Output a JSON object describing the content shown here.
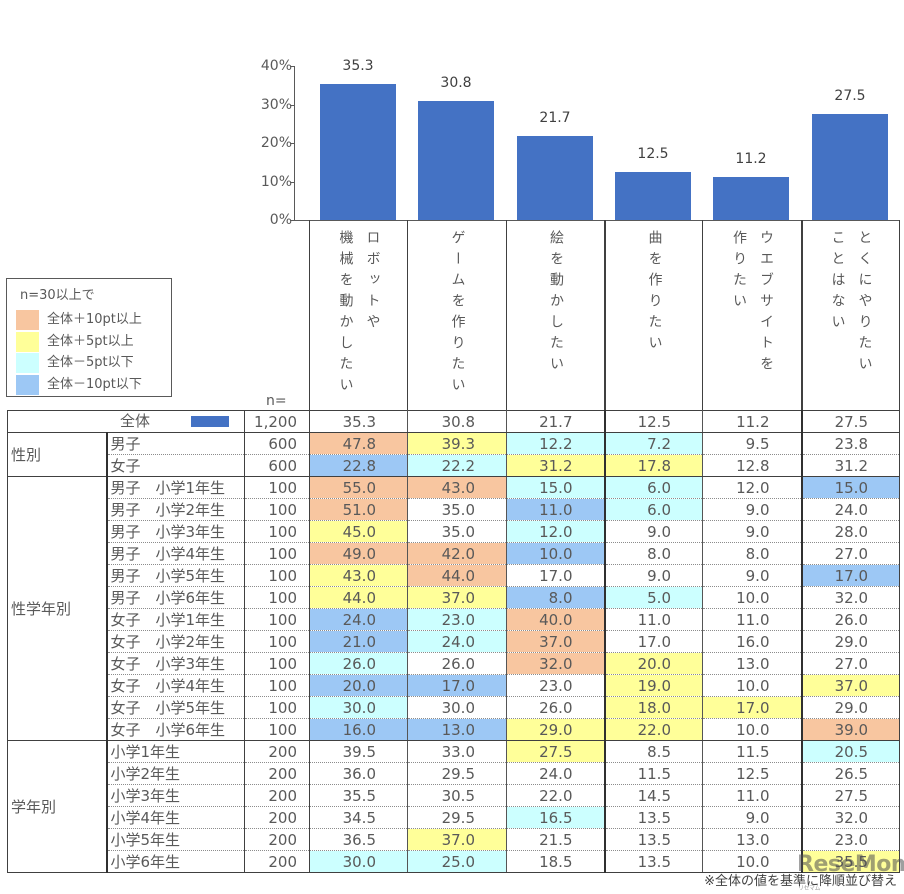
{
  "chart_data": [
    {
      "type": "bar",
      "title": "",
      "xlabel": "",
      "ylabel": "",
      "categories": [
        "ロボットや機械を動かしたい",
        "ゲームを作りたい",
        "絵を動かしたい",
        "曲を作りたい",
        "ウエブサイトを作りたい",
        "とくにやりたいことはない"
      ],
      "values": [
        35.3,
        30.8,
        21.7,
        12.5,
        11.2,
        27.5
      ],
      "value_labels": [
        "35.3",
        "30.8",
        "21.7",
        "12.5",
        "11.2",
        "27.5"
      ],
      "yticks": [
        "0%",
        "10%",
        "20%",
        "30%",
        "40%"
      ],
      "ylim": [
        0,
        40
      ],
      "grid": false,
      "legend": "none",
      "color": "#4472C4"
    },
    {
      "type": "table",
      "columns": [
        "ロボットや機械を動かしたい",
        "ゲームを作りたい",
        "絵を動かしたい",
        "曲を作りたい",
        "ウエブサイトを作りたい",
        "とくにやりたいことはない"
      ],
      "n_label": "n=",
      "total": {
        "label": "全体",
        "n": "1,200",
        "values": [
          "35.3",
          "30.8",
          "21.7",
          "12.5",
          "11.2",
          "27.5"
        ],
        "highlights": [
          "",
          "",
          "",
          "",
          "",
          ""
        ]
      },
      "groups": [
        {
          "label": "性別",
          "rows": [
            {
              "label": "男子",
              "n": "600",
              "values": [
                "47.8",
                "39.3",
                "12.2",
                "7.2",
                "9.5",
                "23.8"
              ],
              "highlights": [
                "o",
                "y",
                "c",
                "c",
                "",
                ""
              ]
            },
            {
              "label": "女子",
              "n": "600",
              "values": [
                "22.8",
                "22.2",
                "31.2",
                "17.8",
                "12.8",
                "31.2"
              ],
              "highlights": [
                "b",
                "c",
                "y",
                "y",
                "",
                ""
              ]
            }
          ]
        },
        {
          "label": "性学年別",
          "rows": [
            {
              "label": "男子　小学1年生",
              "n": "100",
              "values": [
                "55.0",
                "43.0",
                "15.0",
                "6.0",
                "12.0",
                "15.0"
              ],
              "highlights": [
                "o",
                "o",
                "c",
                "c",
                "",
                "b"
              ]
            },
            {
              "label": "男子　小学2年生",
              "n": "100",
              "values": [
                "51.0",
                "35.0",
                "11.0",
                "6.0",
                "9.0",
                "24.0"
              ],
              "highlights": [
                "o",
                "",
                "b",
                "c",
                "",
                ""
              ]
            },
            {
              "label": "男子　小学3年生",
              "n": "100",
              "values": [
                "45.0",
                "35.0",
                "12.0",
                "9.0",
                "9.0",
                "28.0"
              ],
              "highlights": [
                "y",
                "",
                "c",
                "",
                "",
                ""
              ]
            },
            {
              "label": "男子　小学4年生",
              "n": "100",
              "values": [
                "49.0",
                "42.0",
                "10.0",
                "8.0",
                "8.0",
                "27.0"
              ],
              "highlights": [
                "o",
                "o",
                "b",
                "",
                "",
                ""
              ]
            },
            {
              "label": "男子　小学5年生",
              "n": "100",
              "values": [
                "43.0",
                "44.0",
                "17.0",
                "9.0",
                "9.0",
                "17.0"
              ],
              "highlights": [
                "y",
                "o",
                "",
                "",
                "",
                "b"
              ]
            },
            {
              "label": "男子　小学6年生",
              "n": "100",
              "values": [
                "44.0",
                "37.0",
                "8.0",
                "5.0",
                "10.0",
                "32.0"
              ],
              "highlights": [
                "y",
                "y",
                "b",
                "c",
                "",
                ""
              ]
            },
            {
              "label": "女子　小学1年生",
              "n": "100",
              "values": [
                "24.0",
                "23.0",
                "40.0",
                "11.0",
                "11.0",
                "26.0"
              ],
              "highlights": [
                "b",
                "c",
                "o",
                "",
                "",
                ""
              ]
            },
            {
              "label": "女子　小学2年生",
              "n": "100",
              "values": [
                "21.0",
                "24.0",
                "37.0",
                "17.0",
                "16.0",
                "29.0"
              ],
              "highlights": [
                "b",
                "c",
                "o",
                "",
                "",
                ""
              ]
            },
            {
              "label": "女子　小学3年生",
              "n": "100",
              "values": [
                "26.0",
                "26.0",
                "32.0",
                "20.0",
                "13.0",
                "27.0"
              ],
              "highlights": [
                "c",
                "",
                "o",
                "y",
                "",
                ""
              ]
            },
            {
              "label": "女子　小学4年生",
              "n": "100",
              "values": [
                "20.0",
                "17.0",
                "23.0",
                "19.0",
                "10.0",
                "37.0"
              ],
              "highlights": [
                "b",
                "b",
                "",
                "y",
                "",
                "y"
              ]
            },
            {
              "label": "女子　小学5年生",
              "n": "100",
              "values": [
                "30.0",
                "30.0",
                "26.0",
                "18.0",
                "17.0",
                "29.0"
              ],
              "highlights": [
                "c",
                "",
                "",
                "y",
                "y",
                ""
              ]
            },
            {
              "label": "女子　小学6年生",
              "n": "100",
              "values": [
                "16.0",
                "13.0",
                "29.0",
                "22.0",
                "10.0",
                "39.0"
              ],
              "highlights": [
                "b",
                "b",
                "y",
                "y",
                "",
                "o"
              ]
            }
          ]
        },
        {
          "label": "学年別",
          "rows": [
            {
              "label": "小学1年生",
              "n": "200",
              "values": [
                "39.5",
                "33.0",
                "27.5",
                "8.5",
                "11.5",
                "20.5"
              ],
              "highlights": [
                "",
                "",
                "y",
                "",
                "",
                "c"
              ]
            },
            {
              "label": "小学2年生",
              "n": "200",
              "values": [
                "36.0",
                "29.5",
                "24.0",
                "11.5",
                "12.5",
                "26.5"
              ],
              "highlights": [
                "",
                "",
                "",
                "",
                "",
                ""
              ]
            },
            {
              "label": "小学3年生",
              "n": "200",
              "values": [
                "35.5",
                "30.5",
                "22.0",
                "14.5",
                "11.0",
                "27.5"
              ],
              "highlights": [
                "",
                "",
                "",
                "",
                "",
                ""
              ]
            },
            {
              "label": "小学4年生",
              "n": "200",
              "values": [
                "34.5",
                "29.5",
                "16.5",
                "13.5",
                "9.0",
                "32.0"
              ],
              "highlights": [
                "",
                "",
                "c",
                "",
                "",
                ""
              ]
            },
            {
              "label": "小学5年生",
              "n": "200",
              "values": [
                "36.5",
                "37.0",
                "21.5",
                "13.5",
                "13.0",
                "23.0"
              ],
              "highlights": [
                "",
                "y",
                "",
                "",
                "",
                ""
              ]
            },
            {
              "label": "小学6年生",
              "n": "200",
              "values": [
                "30.0",
                "25.0",
                "18.5",
                "13.5",
                "10.0",
                "35.5"
              ],
              "highlights": [
                "c",
                "c",
                "",
                "",
                "",
                "y"
              ]
            }
          ]
        }
      ]
    }
  ],
  "header": {
    "columns": [
      {
        "lines": [
          "ロボットや",
          "機械を動かしたい"
        ]
      },
      {
        "lines": [
          "ゲームを作りたい"
        ]
      },
      {
        "lines": [
          "絵を動かしたい"
        ]
      },
      {
        "lines": [
          "曲を作りたい"
        ]
      },
      {
        "lines": [
          "ウエブサイトを",
          "作りたい"
        ]
      },
      {
        "lines": [
          "とくにやりたい",
          "ことはない"
        ]
      }
    ]
  },
  "legend": {
    "title": "n=30以上で",
    "items": [
      {
        "key": "o",
        "label": "全体＋10pt以上",
        "color": "#F8C6A0"
      },
      {
        "key": "y",
        "label": "全体＋5pt以上",
        "color": "#FFFF99"
      },
      {
        "key": "c",
        "label": "全体－5pt以下",
        "color": "#CCFFFF"
      },
      {
        "key": "b",
        "label": "全体－10pt以下",
        "color": "#9DC8F5"
      }
    ]
  },
  "footnote": "※全体の値を基準に降順並び替え",
  "watermark": {
    "text": "ReseMom",
    "sub": "リセマム"
  }
}
